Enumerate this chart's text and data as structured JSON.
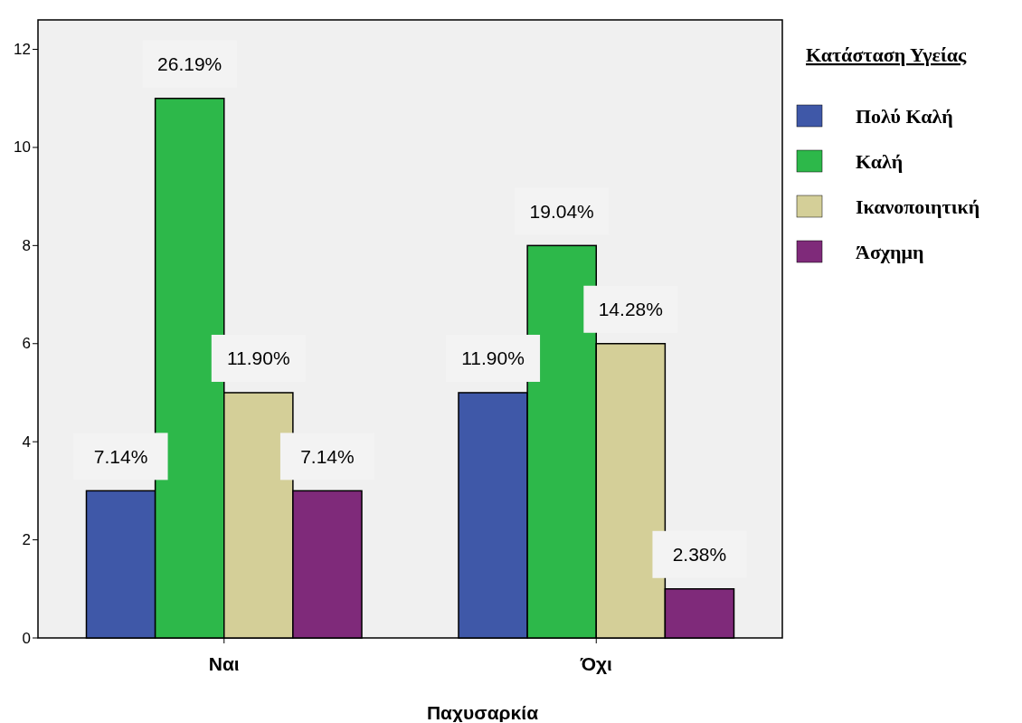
{
  "chart_data": {
    "type": "bar",
    "xlabel": "Παχυσαρκία",
    "legend_title": "Κατάσταση Υγείας",
    "categories": [
      "Ναι",
      "Όχι"
    ],
    "series": [
      {
        "name": "Πολύ Καλή",
        "color": "#3f58a8",
        "values": [
          3,
          5
        ]
      },
      {
        "name": "Καλή",
        "color": "#2db84a",
        "values": [
          11,
          8
        ]
      },
      {
        "name": "Ικανοποιητική",
        "color": "#d4cf98",
        "values": [
          5,
          6
        ]
      },
      {
        "name": "Άσχημη",
        "color": "#7f2a7a",
        "values": [
          3,
          1
        ]
      }
    ],
    "annotations": [
      "7.14%",
      "11.90%",
      "26.19%",
      "19.04%",
      "11.90%",
      "14.28%",
      "7.14%",
      "2.38%"
    ],
    "ylim": [
      0,
      12.6
    ],
    "yticks": [
      0,
      2,
      4,
      6,
      8,
      10,
      12
    ],
    "grid": false,
    "legend": "right"
  }
}
